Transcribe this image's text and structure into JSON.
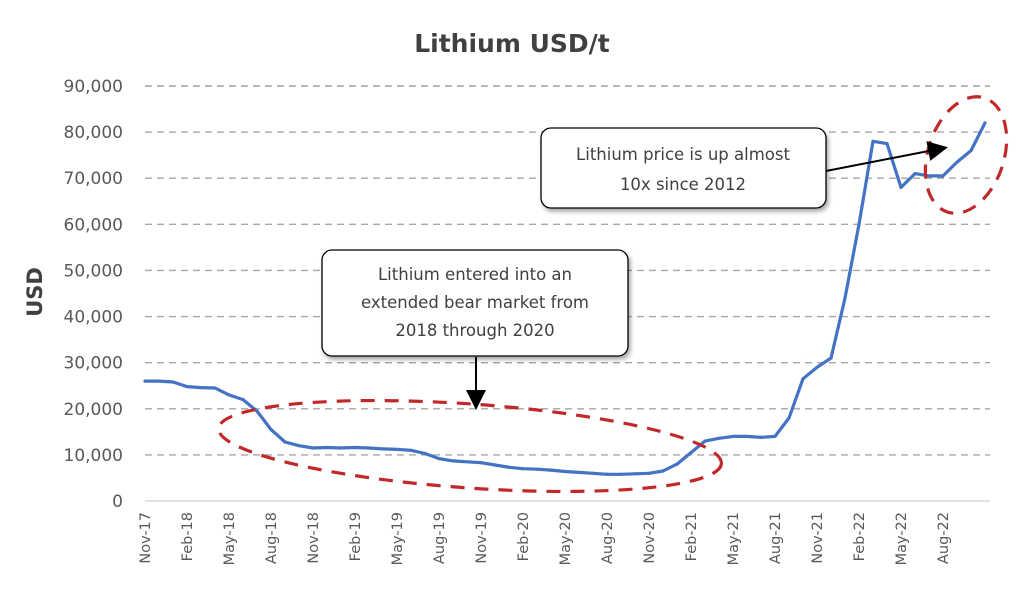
{
  "chart_data": {
    "type": "line",
    "title": "Lithium USD/t",
    "xlabel": "",
    "ylabel": "USD",
    "ylim": [
      0,
      90000
    ],
    "yticks": [
      "0",
      "10,000",
      "20,000",
      "30,000",
      "40,000",
      "50,000",
      "60,000",
      "70,000",
      "80,000",
      "90,000"
    ],
    "ytick_values": [
      0,
      10000,
      20000,
      30000,
      40000,
      50000,
      60000,
      70000,
      80000,
      90000
    ],
    "xlim": [
      "2017-11",
      "2022-11"
    ],
    "xticks": [
      "Nov-17",
      "Feb-18",
      "May-18",
      "Aug-18",
      "Nov-18",
      "Feb-19",
      "May-19",
      "Aug-19",
      "Nov-19",
      "Feb-20",
      "May-20",
      "Aug-20",
      "Nov-20",
      "Feb-21",
      "May-21",
      "Aug-21",
      "Nov-21",
      "Feb-22",
      "May-22",
      "Aug-22"
    ],
    "grid": "horizontal dashed",
    "legend": "none",
    "colors": {
      "line": "#4472C4",
      "highlight": "#C0282A",
      "grid": "#A6A6A6"
    },
    "series": [
      {
        "x": [
          "2017-11",
          "2017-12",
          "2018-01",
          "2018-02",
          "2018-03",
          "2018-04",
          "2018-05",
          "2018-06",
          "2018-07",
          "2018-08",
          "2018-09",
          "2018-10",
          "2018-11",
          "2018-12",
          "2019-01",
          "2019-02",
          "2019-03",
          "2019-04",
          "2019-05",
          "2019-06",
          "2019-07",
          "2019-08",
          "2019-09",
          "2019-10",
          "2019-11",
          "2019-12",
          "2020-01",
          "2020-02",
          "2020-03",
          "2020-04",
          "2020-05",
          "2020-06",
          "2020-07",
          "2020-08",
          "2020-09",
          "2020-10",
          "2020-11",
          "2020-12",
          "2021-01",
          "2021-02",
          "2021-03",
          "2021-04",
          "2021-05",
          "2021-06",
          "2021-07",
          "2021-08",
          "2021-09",
          "2021-10",
          "2021-11",
          "2021-12",
          "2022-01",
          "2022-02",
          "2022-03",
          "2022-04",
          "2022-05",
          "2022-06",
          "2022-07",
          "2022-08",
          "2022-09",
          "2022-10",
          "2022-11"
        ],
        "values": [
          26000,
          26000,
          25800,
          24800,
          24600,
          24500,
          23000,
          22000,
          19500,
          15500,
          12800,
          12000,
          11500,
          11600,
          11500,
          11600,
          11500,
          11300,
          11200,
          11000,
          10300,
          9200,
          8700,
          8500,
          8300,
          7800,
          7300,
          7000,
          6900,
          6700,
          6400,
          6200,
          6000,
          5800,
          5800,
          5900,
          6000,
          6500,
          8000,
          10500,
          13000,
          13600,
          14000,
          14000,
          13800,
          14000,
          18000,
          26500,
          29000,
          31000,
          44000,
          60000,
          78000,
          77500,
          68000,
          71000,
          70500,
          70500,
          73500,
          76000,
          82000
        ]
      }
    ],
    "annotations": [
      {
        "text_lines": [
          "Lithium price is up almost",
          "10x since 2012"
        ]
      },
      {
        "text_lines": [
          "Lithium entered into an",
          "extended bear market from",
          "2018 through 2020"
        ]
      }
    ]
  }
}
